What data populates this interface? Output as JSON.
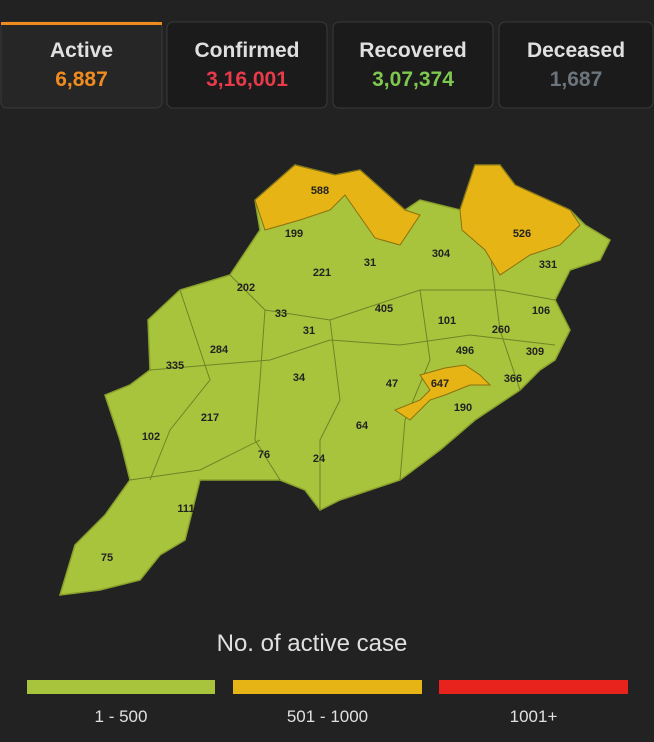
{
  "tabs": [
    {
      "label": "Active",
      "count": "6,887",
      "color": "#f08c1e"
    },
    {
      "label": "Confirmed",
      "count": "3,16,001",
      "color": "#e83a4a"
    },
    {
      "label": "Recovered",
      "count": "3,07,374",
      "color": "#7ec850"
    },
    {
      "label": "Deceased",
      "count": "1,687",
      "color": "#6c757d"
    }
  ],
  "map": {
    "districts": [
      {
        "value": 588,
        "color": "#e6b414"
      },
      {
        "value": 526,
        "color": "#e6b414"
      },
      {
        "value": 647,
        "color": "#e6b414"
      },
      {
        "value": 190,
        "color": "#a8c43d"
      },
      {
        "value": 331,
        "color": "#a8c43d"
      },
      {
        "value": 304,
        "color": "#a8c43d"
      },
      {
        "value": 199,
        "color": "#a8c43d"
      },
      {
        "value": 221,
        "color": "#a8c43d"
      },
      {
        "value": 31,
        "color": "#a8c43d"
      },
      {
        "value": 202,
        "color": "#a8c43d"
      },
      {
        "value": 33,
        "color": "#a8c43d"
      },
      {
        "value": 31,
        "color": "#a8c43d"
      },
      {
        "value": 405,
        "color": "#a8c43d"
      },
      {
        "value": 101,
        "color": "#a8c43d"
      },
      {
        "value": 260,
        "color": "#a8c43d"
      },
      {
        "value": 106,
        "color": "#a8c43d"
      },
      {
        "value": 284,
        "color": "#a8c43d"
      },
      {
        "value": 335,
        "color": "#a8c43d"
      },
      {
        "value": 496,
        "color": "#a8c43d"
      },
      {
        "value": 309,
        "color": "#a8c43d"
      },
      {
        "value": 34,
        "color": "#a8c43d"
      },
      {
        "value": 47,
        "color": "#a8c43d"
      },
      {
        "value": 366,
        "color": "#a8c43d"
      },
      {
        "value": 217,
        "color": "#a8c43d"
      },
      {
        "value": 102,
        "color": "#a8c43d"
      },
      {
        "value": 64,
        "color": "#a8c43d"
      },
      {
        "value": 76,
        "color": "#a8c43d"
      },
      {
        "value": 24,
        "color": "#a8c43d"
      },
      {
        "value": 111,
        "color": "#a8c43d"
      },
      {
        "value": 75,
        "color": "#a8c43d"
      }
    ]
  },
  "legend": {
    "title": "No. of active case",
    "items": [
      {
        "label": "1 - 500",
        "color": "#a8c43d"
      },
      {
        "label": "501 - 1000",
        "color": "#e6b414"
      },
      {
        "label": "1001+",
        "color": "#e8221c"
      }
    ]
  }
}
